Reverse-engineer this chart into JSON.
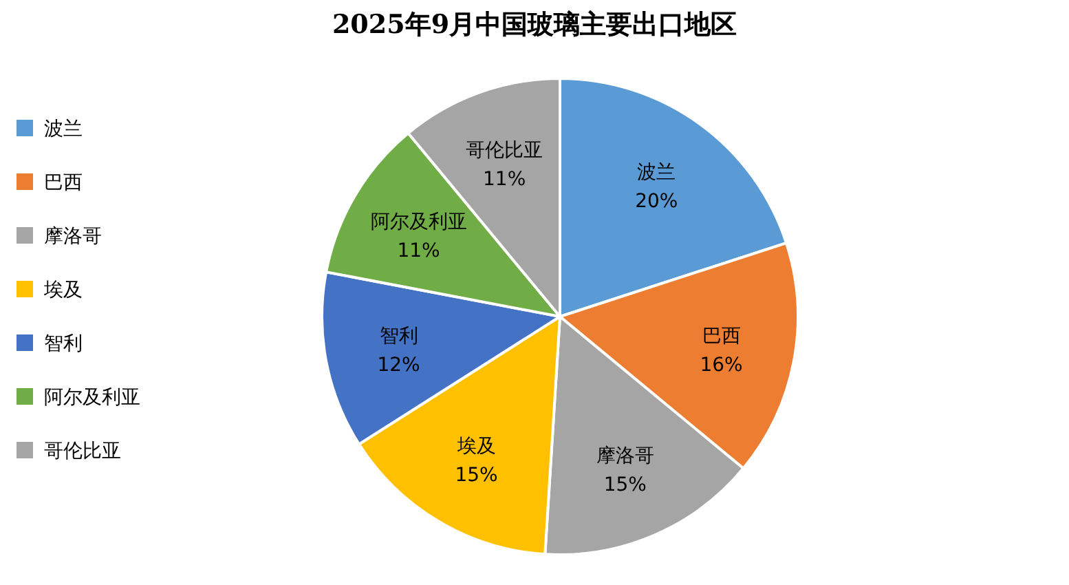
{
  "chart_data": {
    "type": "pie",
    "title": "2025年9月中国玻璃主要出口地区",
    "categories": [
      "波兰",
      "巴西",
      "摩洛哥",
      "埃及",
      "智利",
      "阿尔及利亚",
      "哥伦比亚"
    ],
    "values": [
      20,
      16,
      15,
      15,
      12,
      11,
      11
    ],
    "value_labels": [
      "20%",
      "16%",
      "15%",
      "15%",
      "12%",
      "11%",
      "11%"
    ],
    "colors": [
      "#5b9bd5",
      "#ed7d31",
      "#a5a5a5",
      "#ffc000",
      "#4472c4",
      "#70ad47",
      "#a5a5a5"
    ],
    "legend": "left"
  }
}
